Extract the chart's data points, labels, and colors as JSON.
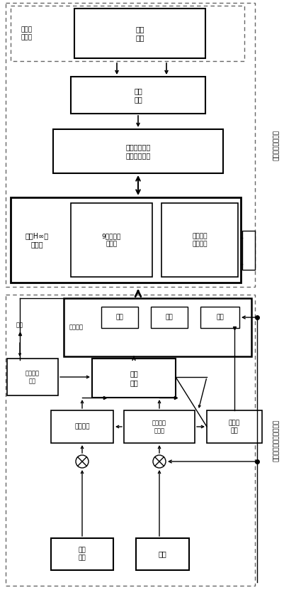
{
  "fig_width": 4.01,
  "fig_height": 8.31,
  "bg_color": "#ffffff",
  "box_ec": "#000000",
  "box_fc": "#ffffff",
  "dash_ec": "#666666",
  "font_size": 6.5,
  "label_top": "组合导航鲁棒滤波",
  "label_bottom": "发射惯性系捷联惯导解算",
  "boxes_top": {
    "raw_label": "原始测\n量信息",
    "sensor": "星敏\n感器",
    "algo": "转换\n算法",
    "measure": "发射惯性系下\n系统量测信息",
    "filter_label": "扩展H∞鲁\n棒滤波",
    "nav_state": "9维导航状\n态估计",
    "imu_error": "惯性仪表\n误差估计"
  },
  "boxes_bottom": {
    "nav_info_label": "导航信息",
    "pos": "位置",
    "vel": "速度",
    "att": "姿态",
    "gravity": "万有引力\n计算",
    "nav_solve": "导航\n解算",
    "att_matrix": "姿态矩阵",
    "quat": "姿态四元\n数计算",
    "att_angle": "姿态角\n计算",
    "accel": "加速\n度计",
    "gyro": "陀螺",
    "delay": "延迟"
  }
}
